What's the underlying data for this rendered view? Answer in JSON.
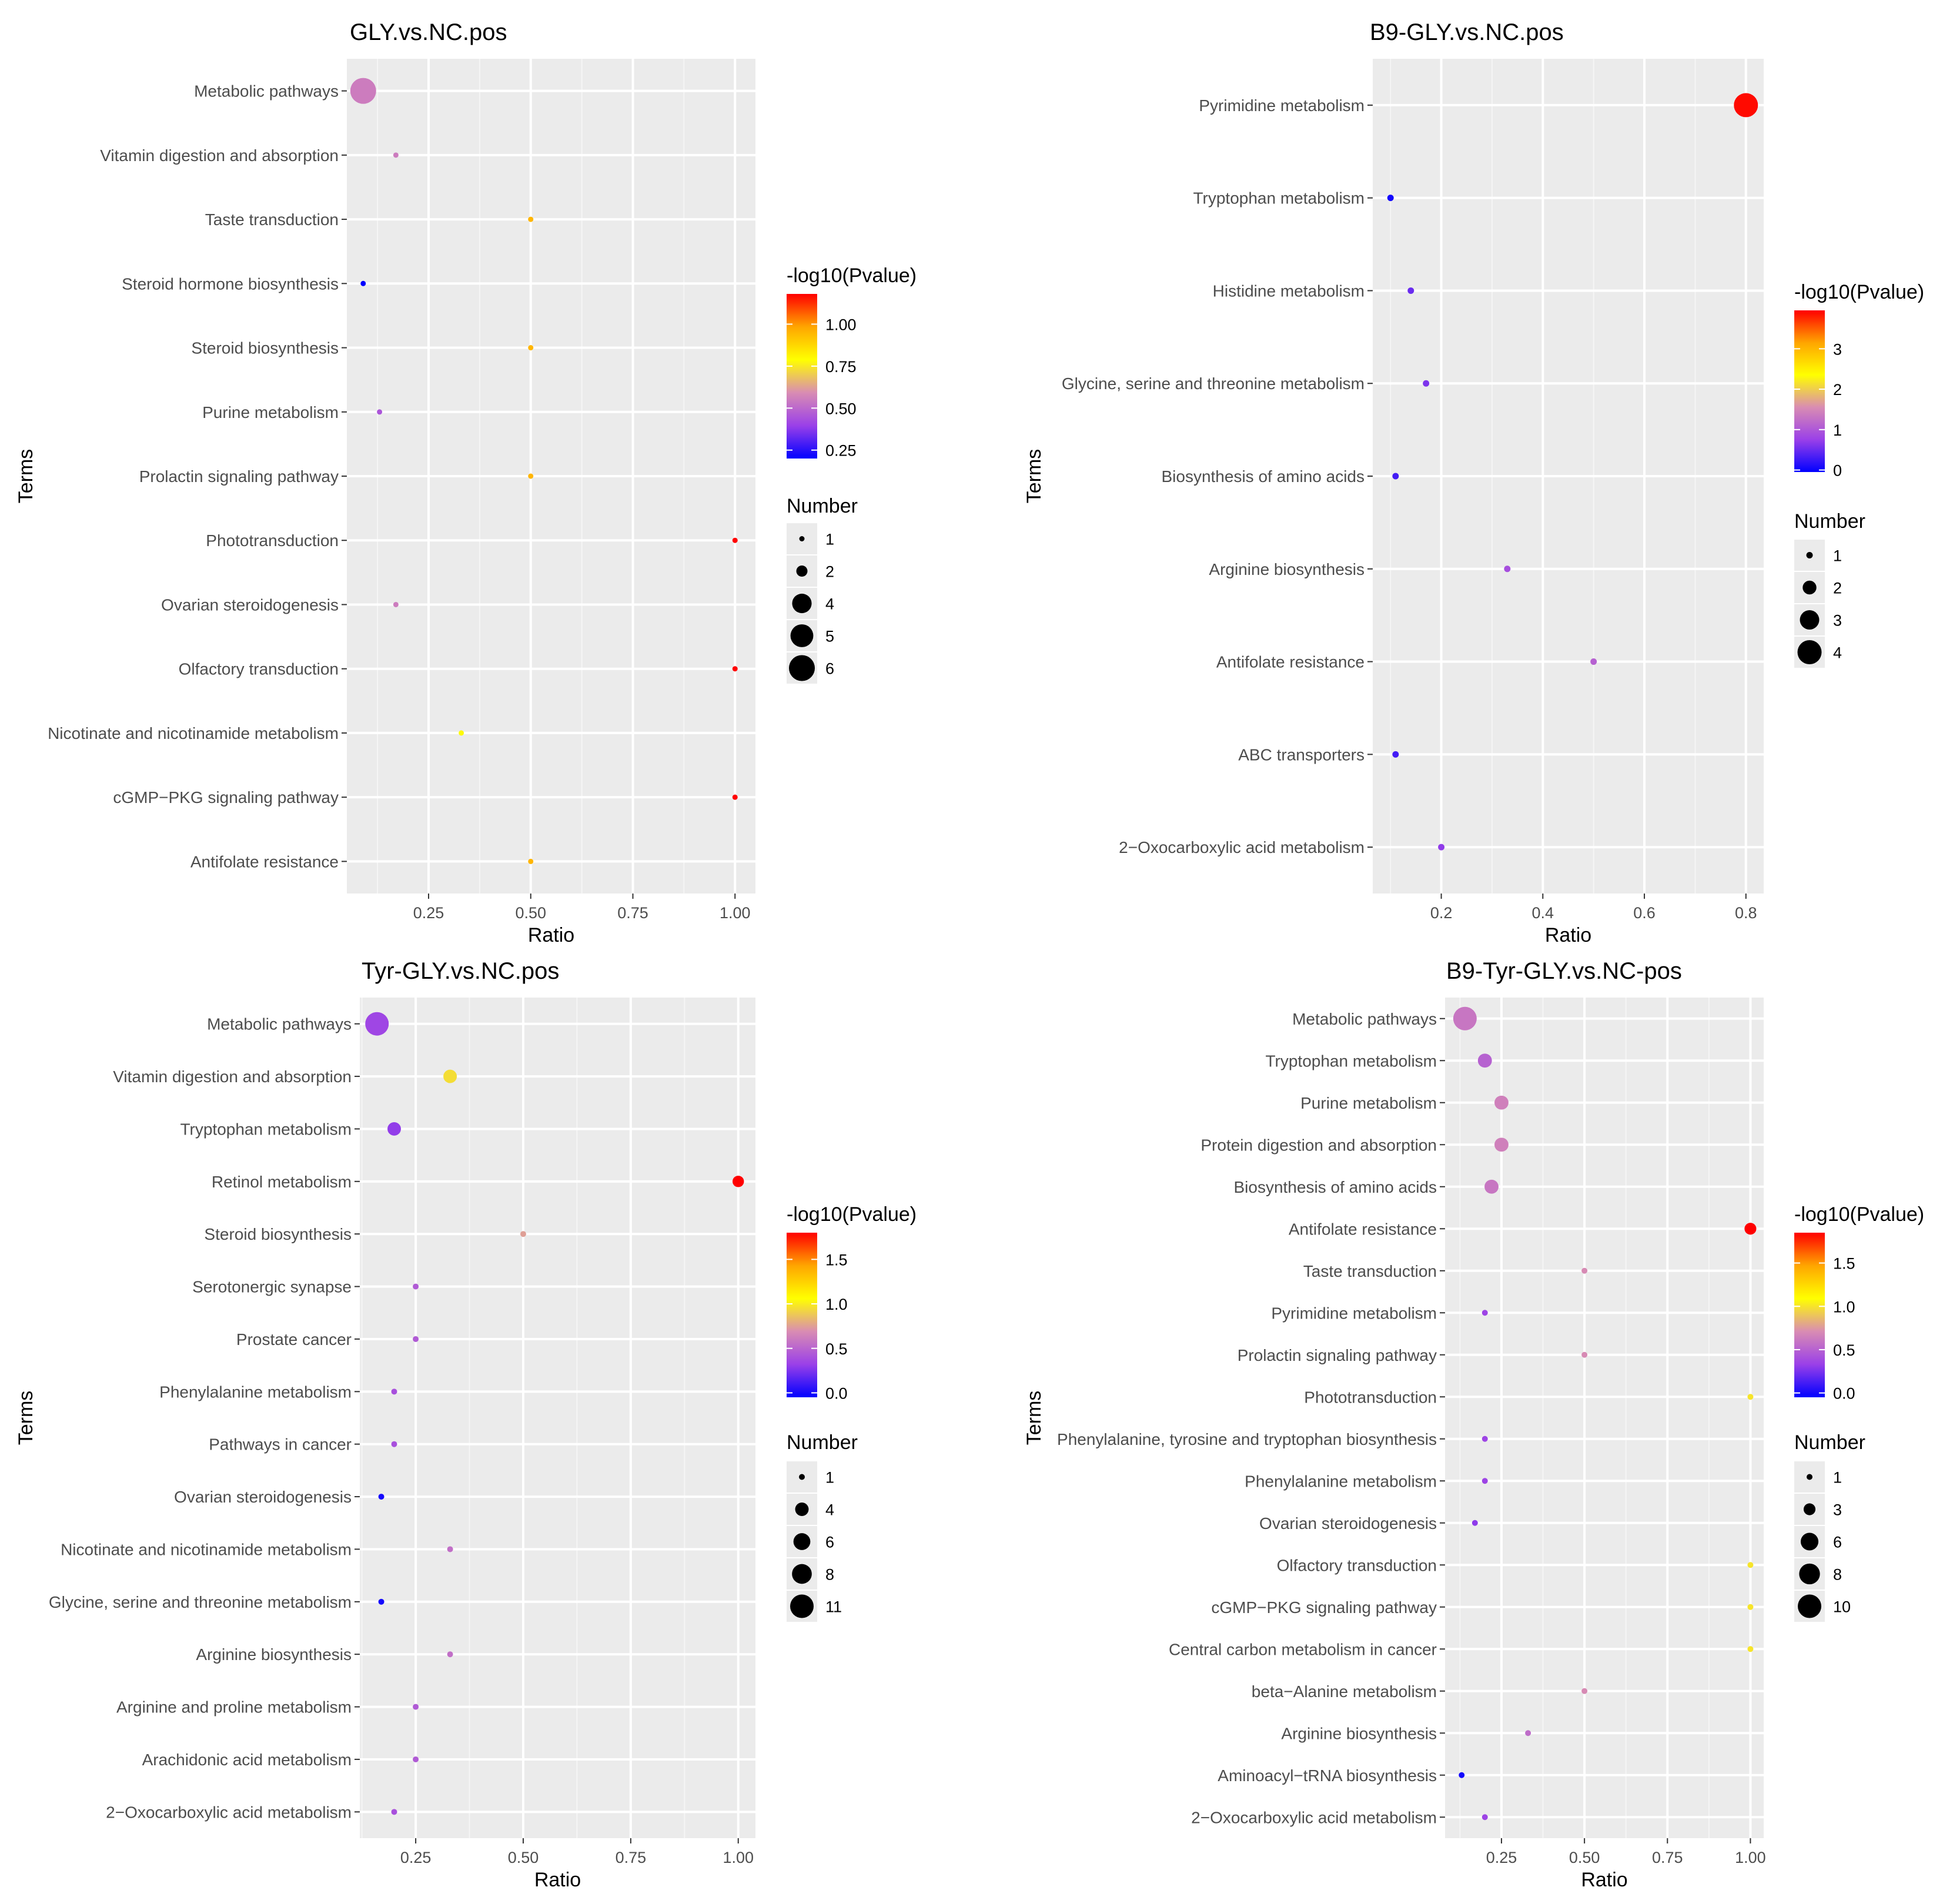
{
  "colors": {
    "panel_background": "#ebebeb",
    "grid_major": "#ffffff",
    "grid_minor": "#f5f5f5",
    "gradient": [
      "#0000ff",
      "#9a40e8",
      "#d98cb3",
      "#ffff00",
      "#ffa500",
      "#ff0000"
    ]
  },
  "chart_data": [
    {
      "type": "scatter",
      "title": "GLY.vs.NC.pos",
      "xlabel": "Ratio",
      "ylabel": "Terms",
      "xlim": [
        0.05,
        1.05
      ],
      "xticks": [
        0.25,
        0.5,
        0.75,
        1.0
      ],
      "xtick_labels": [
        "0.25",
        "0.50",
        "0.75",
        "1.00"
      ],
      "color_legend": {
        "title": "-log10(Pvalue)",
        "range": [
          0.2,
          1.18
        ],
        "ticks": [
          1.0,
          0.75,
          0.5,
          0.25
        ],
        "tick_labels": [
          "1.00",
          "0.75",
          "0.50",
          "0.25"
        ]
      },
      "size_legend": {
        "title": "Number",
        "values": [
          1,
          2,
          4,
          5,
          6
        ]
      },
      "points": [
        {
          "term": "Metabolic pathways",
          "ratio": 0.09,
          "neg_log10_p": 0.55,
          "number": 6
        },
        {
          "term": "Vitamin digestion and absorption",
          "ratio": 0.17,
          "neg_log10_p": 0.55,
          "number": 1
        },
        {
          "term": "Taste transduction",
          "ratio": 0.5,
          "neg_log10_p": 0.95,
          "number": 1
        },
        {
          "term": "Steroid hormone biosynthesis",
          "ratio": 0.09,
          "neg_log10_p": 0.2,
          "number": 1
        },
        {
          "term": "Steroid biosynthesis",
          "ratio": 0.5,
          "neg_log10_p": 0.95,
          "number": 1
        },
        {
          "term": "Purine metabolism",
          "ratio": 0.13,
          "neg_log10_p": 0.45,
          "number": 1
        },
        {
          "term": "Prolactin signaling pathway",
          "ratio": 0.5,
          "neg_log10_p": 0.95,
          "number": 1
        },
        {
          "term": "Phototransduction",
          "ratio": 1.0,
          "neg_log10_p": 1.18,
          "number": 1
        },
        {
          "term": "Ovarian steroidogenesis",
          "ratio": 0.17,
          "neg_log10_p": 0.55,
          "number": 1
        },
        {
          "term": "Olfactory transduction",
          "ratio": 1.0,
          "neg_log10_p": 1.18,
          "number": 1
        },
        {
          "term": "Nicotinate and nicotinamide metabolism",
          "ratio": 0.33,
          "neg_log10_p": 0.78,
          "number": 1
        },
        {
          "term": "cGMP−PKG signaling pathway",
          "ratio": 1.0,
          "neg_log10_p": 1.18,
          "number": 1
        },
        {
          "term": "Antifolate resistance",
          "ratio": 0.5,
          "neg_log10_p": 0.95,
          "number": 1
        }
      ]
    },
    {
      "type": "scatter",
      "title": "B9-GLY.vs.NC.pos",
      "xlabel": "Ratio",
      "ylabel": "Terms",
      "xlim": [
        0.065,
        0.835
      ],
      "xticks": [
        0.2,
        0.4,
        0.6,
        0.8
      ],
      "xtick_labels": [
        "0.2",
        "0.4",
        "0.6",
        "0.8"
      ],
      "color_legend": {
        "title": "-log10(Pvalue)",
        "range": [
          -0.05,
          3.95
        ],
        "ticks": [
          3,
          2,
          1,
          0
        ],
        "tick_labels": [
          "3",
          "2",
          "1",
          "0"
        ]
      },
      "size_legend": {
        "title": "Number",
        "values": [
          1,
          2,
          3,
          4
        ]
      },
      "points": [
        {
          "term": "Pyrimidine metabolism",
          "ratio": 0.8,
          "neg_log10_p": 3.9,
          "number": 4
        },
        {
          "term": "Tryptophan metabolism",
          "ratio": 0.1,
          "neg_log10_p": 0.05,
          "number": 1
        },
        {
          "term": "Histidine metabolism",
          "ratio": 0.14,
          "neg_log10_p": 0.5,
          "number": 1
        },
        {
          "term": "Glycine, serine and threonine metabolism",
          "ratio": 0.17,
          "neg_log10_p": 0.6,
          "number": 1
        },
        {
          "term": "Biosynthesis of amino acids",
          "ratio": 0.11,
          "neg_log10_p": 0.3,
          "number": 1
        },
        {
          "term": "Arginine biosynthesis",
          "ratio": 0.33,
          "neg_log10_p": 0.9,
          "number": 1
        },
        {
          "term": "Antifolate resistance",
          "ratio": 0.5,
          "neg_log10_p": 1.1,
          "number": 1
        },
        {
          "term": "ABC transporters",
          "ratio": 0.11,
          "neg_log10_p": 0.3,
          "number": 1
        },
        {
          "term": "2−Oxocarboxylic acid metabolism",
          "ratio": 0.2,
          "neg_log10_p": 0.7,
          "number": 1
        }
      ]
    },
    {
      "type": "scatter",
      "title": "Tyr-GLY.vs.NC.pos",
      "xlabel": "Ratio",
      "ylabel": "Terms",
      "xlim": [
        0.12,
        1.04
      ],
      "xticks": [
        0.25,
        0.5,
        0.75,
        1.0
      ],
      "xtick_labels": [
        "0.25",
        "0.50",
        "0.75",
        "1.00"
      ],
      "color_legend": {
        "title": "-log10(Pvalue)",
        "range": [
          -0.05,
          1.8
        ],
        "ticks": [
          1.5,
          1.0,
          0.5,
          0.0
        ],
        "tick_labels": [
          "1.5",
          "1.0",
          "0.5",
          "0.0"
        ]
      },
      "size_legend": {
        "title": "Number",
        "values": [
          1,
          4,
          6,
          8,
          11
        ]
      },
      "points": [
        {
          "term": "Metabolic pathways",
          "ratio": 0.16,
          "neg_log10_p": 0.35,
          "number": 11
        },
        {
          "term": "Vitamin digestion and absorption",
          "ratio": 0.33,
          "neg_log10_p": 0.95,
          "number": 4
        },
        {
          "term": "Tryptophan metabolism",
          "ratio": 0.2,
          "neg_log10_p": 0.3,
          "number": 4
        },
        {
          "term": "Retinol metabolism",
          "ratio": 1.0,
          "neg_log10_p": 1.8,
          "number": 3
        },
        {
          "term": "Steroid biosynthesis",
          "ratio": 0.5,
          "neg_log10_p": 0.75,
          "number": 1
        },
        {
          "term": "Serotonergic synapse",
          "ratio": 0.25,
          "neg_log10_p": 0.45,
          "number": 1
        },
        {
          "term": "Prostate cancer",
          "ratio": 0.25,
          "neg_log10_p": 0.45,
          "number": 1
        },
        {
          "term": "Phenylalanine metabolism",
          "ratio": 0.2,
          "neg_log10_p": 0.4,
          "number": 1
        },
        {
          "term": "Pathways in cancer",
          "ratio": 0.2,
          "neg_log10_p": 0.4,
          "number": 1
        },
        {
          "term": "Ovarian steroidogenesis",
          "ratio": 0.17,
          "neg_log10_p": 0.0,
          "number": 1
        },
        {
          "term": "Nicotinate and nicotinamide metabolism",
          "ratio": 0.33,
          "neg_log10_p": 0.55,
          "number": 1
        },
        {
          "term": "Glycine, serine and threonine metabolism",
          "ratio": 0.17,
          "neg_log10_p": 0.0,
          "number": 1
        },
        {
          "term": "Arginine biosynthesis",
          "ratio": 0.33,
          "neg_log10_p": 0.55,
          "number": 1
        },
        {
          "term": "Arginine and proline metabolism",
          "ratio": 0.25,
          "neg_log10_p": 0.45,
          "number": 1
        },
        {
          "term": "Arachidonic acid metabolism",
          "ratio": 0.25,
          "neg_log10_p": 0.45,
          "number": 1
        },
        {
          "term": "2−Oxocarboxylic acid metabolism",
          "ratio": 0.2,
          "neg_log10_p": 0.4,
          "number": 1
        }
      ]
    },
    {
      "type": "scatter",
      "title": "B9-Tyr-GLY.vs.NC-pos",
      "xlabel": "Ratio",
      "ylabel": "Terms",
      "xlim": [
        0.08,
        1.04
      ],
      "xticks": [
        0.25,
        0.5,
        0.75,
        1.0
      ],
      "xtick_labels": [
        "0.25",
        "0.50",
        "0.75",
        "1.00"
      ],
      "color_legend": {
        "title": "-log10(Pvalue)",
        "range": [
          -0.05,
          1.85
        ],
        "ticks": [
          1.5,
          1.0,
          0.5,
          0.0
        ],
        "tick_labels": [
          "1.5",
          "1.0",
          "0.5",
          "0.0"
        ]
      },
      "size_legend": {
        "title": "Number",
        "values": [
          1,
          3,
          6,
          8,
          10
        ]
      },
      "points": [
        {
          "term": "Metabolic pathways",
          "ratio": 0.14,
          "neg_log10_p": 0.6,
          "number": 10
        },
        {
          "term": "Tryptophan metabolism",
          "ratio": 0.2,
          "neg_log10_p": 0.5,
          "number": 4
        },
        {
          "term": "Purine metabolism",
          "ratio": 0.25,
          "neg_log10_p": 0.65,
          "number": 4
        },
        {
          "term": "Protein digestion and absorption",
          "ratio": 0.25,
          "neg_log10_p": 0.65,
          "number": 4
        },
        {
          "term": "Biosynthesis of amino acids",
          "ratio": 0.22,
          "neg_log10_p": 0.6,
          "number": 4
        },
        {
          "term": "Antifolate resistance",
          "ratio": 1.0,
          "neg_log10_p": 1.85,
          "number": 3
        },
        {
          "term": "Taste transduction",
          "ratio": 0.5,
          "neg_log10_p": 0.7,
          "number": 1
        },
        {
          "term": "Pyrimidine metabolism",
          "ratio": 0.2,
          "neg_log10_p": 0.35,
          "number": 1
        },
        {
          "term": "Prolactin signaling pathway",
          "ratio": 0.5,
          "neg_log10_p": 0.7,
          "number": 1
        },
        {
          "term": "Phototransduction",
          "ratio": 1.0,
          "neg_log10_p": 1.0,
          "number": 1
        },
        {
          "term": "Phenylalanine, tyrosine and tryptophan biosynthesis",
          "ratio": 0.2,
          "neg_log10_p": 0.35,
          "number": 1
        },
        {
          "term": "Phenylalanine metabolism",
          "ratio": 0.2,
          "neg_log10_p": 0.35,
          "number": 1
        },
        {
          "term": "Ovarian steroidogenesis",
          "ratio": 0.17,
          "neg_log10_p": 0.3,
          "number": 1
        },
        {
          "term": "Olfactory transduction",
          "ratio": 1.0,
          "neg_log10_p": 1.0,
          "number": 1
        },
        {
          "term": "cGMP−PKG signaling pathway",
          "ratio": 1.0,
          "neg_log10_p": 1.0,
          "number": 1
        },
        {
          "term": "Central carbon metabolism in cancer",
          "ratio": 1.0,
          "neg_log10_p": 1.0,
          "number": 1
        },
        {
          "term": "beta−Alanine metabolism",
          "ratio": 0.5,
          "neg_log10_p": 0.7,
          "number": 1
        },
        {
          "term": "Arginine biosynthesis",
          "ratio": 0.33,
          "neg_log10_p": 0.55,
          "number": 1
        },
        {
          "term": "Aminoacyl−tRNA biosynthesis",
          "ratio": 0.13,
          "neg_log10_p": 0.0,
          "number": 1
        },
        {
          "term": "2−Oxocarboxylic acid metabolism",
          "ratio": 0.2,
          "neg_log10_p": 0.35,
          "number": 1
        }
      ]
    }
  ]
}
